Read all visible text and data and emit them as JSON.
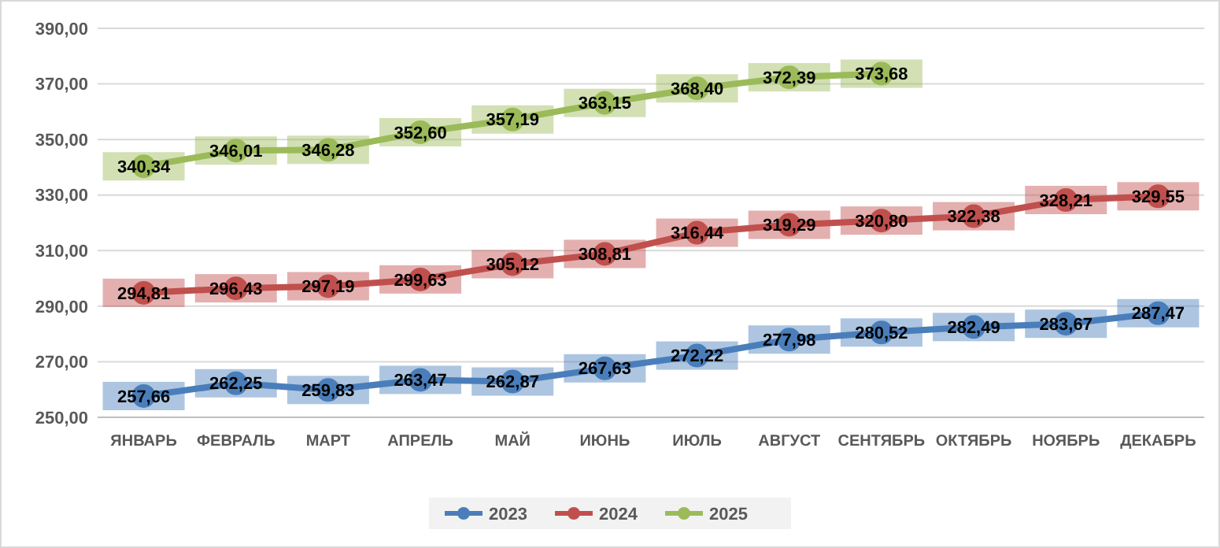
{
  "chart_data": {
    "type": "line",
    "categories": [
      "ЯНВАРЬ",
      "ФЕВРАЛЬ",
      "МАРТ",
      "АПРЕЛЬ",
      "МАЙ",
      "ИЮНЬ",
      "ИЮЛЬ",
      "АВГУСТ",
      "СЕНТЯБРЬ",
      "ОКТЯБРЬ",
      "НОЯБРЬ",
      "ДЕКАБРЬ"
    ],
    "series": [
      {
        "name": "2023",
        "color": "#4a7ebb",
        "values": [
          257.66,
          262.25,
          259.83,
          263.47,
          262.87,
          267.63,
          272.22,
          277.98,
          280.52,
          282.49,
          283.67,
          287.47
        ],
        "value_labels": [
          "257,66",
          "262,25",
          "259,83",
          "263,47",
          "262,87",
          "267,63",
          "272,22",
          "277,98",
          "280,52",
          "282,49",
          "283,67",
          "287,47"
        ]
      },
      {
        "name": "2024",
        "color": "#c0504d",
        "values": [
          294.81,
          296.43,
          297.19,
          299.63,
          305.12,
          308.81,
          316.44,
          319.29,
          320.8,
          322.38,
          328.21,
          329.55
        ],
        "value_labels": [
          "294,81",
          "296,43",
          "297,19",
          "299,63",
          "305,12",
          "308,81",
          "316,44",
          "319,29",
          "320,80",
          "322,38",
          "328,21",
          "329,55"
        ]
      },
      {
        "name": "2025",
        "color": "#9bbb59",
        "values": [
          340.34,
          346.01,
          346.28,
          352.6,
          357.19,
          363.15,
          368.4,
          372.39,
          373.68,
          null,
          null,
          null
        ],
        "value_labels": [
          "340,34",
          "346,01",
          "346,28",
          "352,60",
          "357,19",
          "363,15",
          "368,40",
          "372,39",
          "373,68",
          null,
          null,
          null
        ]
      }
    ],
    "ylim": [
      250,
      390
    ],
    "yticks": [
      {
        "value": 250,
        "label": "250,00"
      },
      {
        "value": 270,
        "label": "270,00"
      },
      {
        "value": 290,
        "label": "290,00"
      },
      {
        "value": 310,
        "label": "310,00"
      },
      {
        "value": 330,
        "label": "330,00"
      },
      {
        "value": 350,
        "label": "350,00"
      },
      {
        "value": 370,
        "label": "370,00"
      },
      {
        "value": 390,
        "label": "390,00"
      }
    ],
    "grid": "y",
    "legend": "bottom",
    "marker": "circle",
    "line_style": "solid"
  }
}
